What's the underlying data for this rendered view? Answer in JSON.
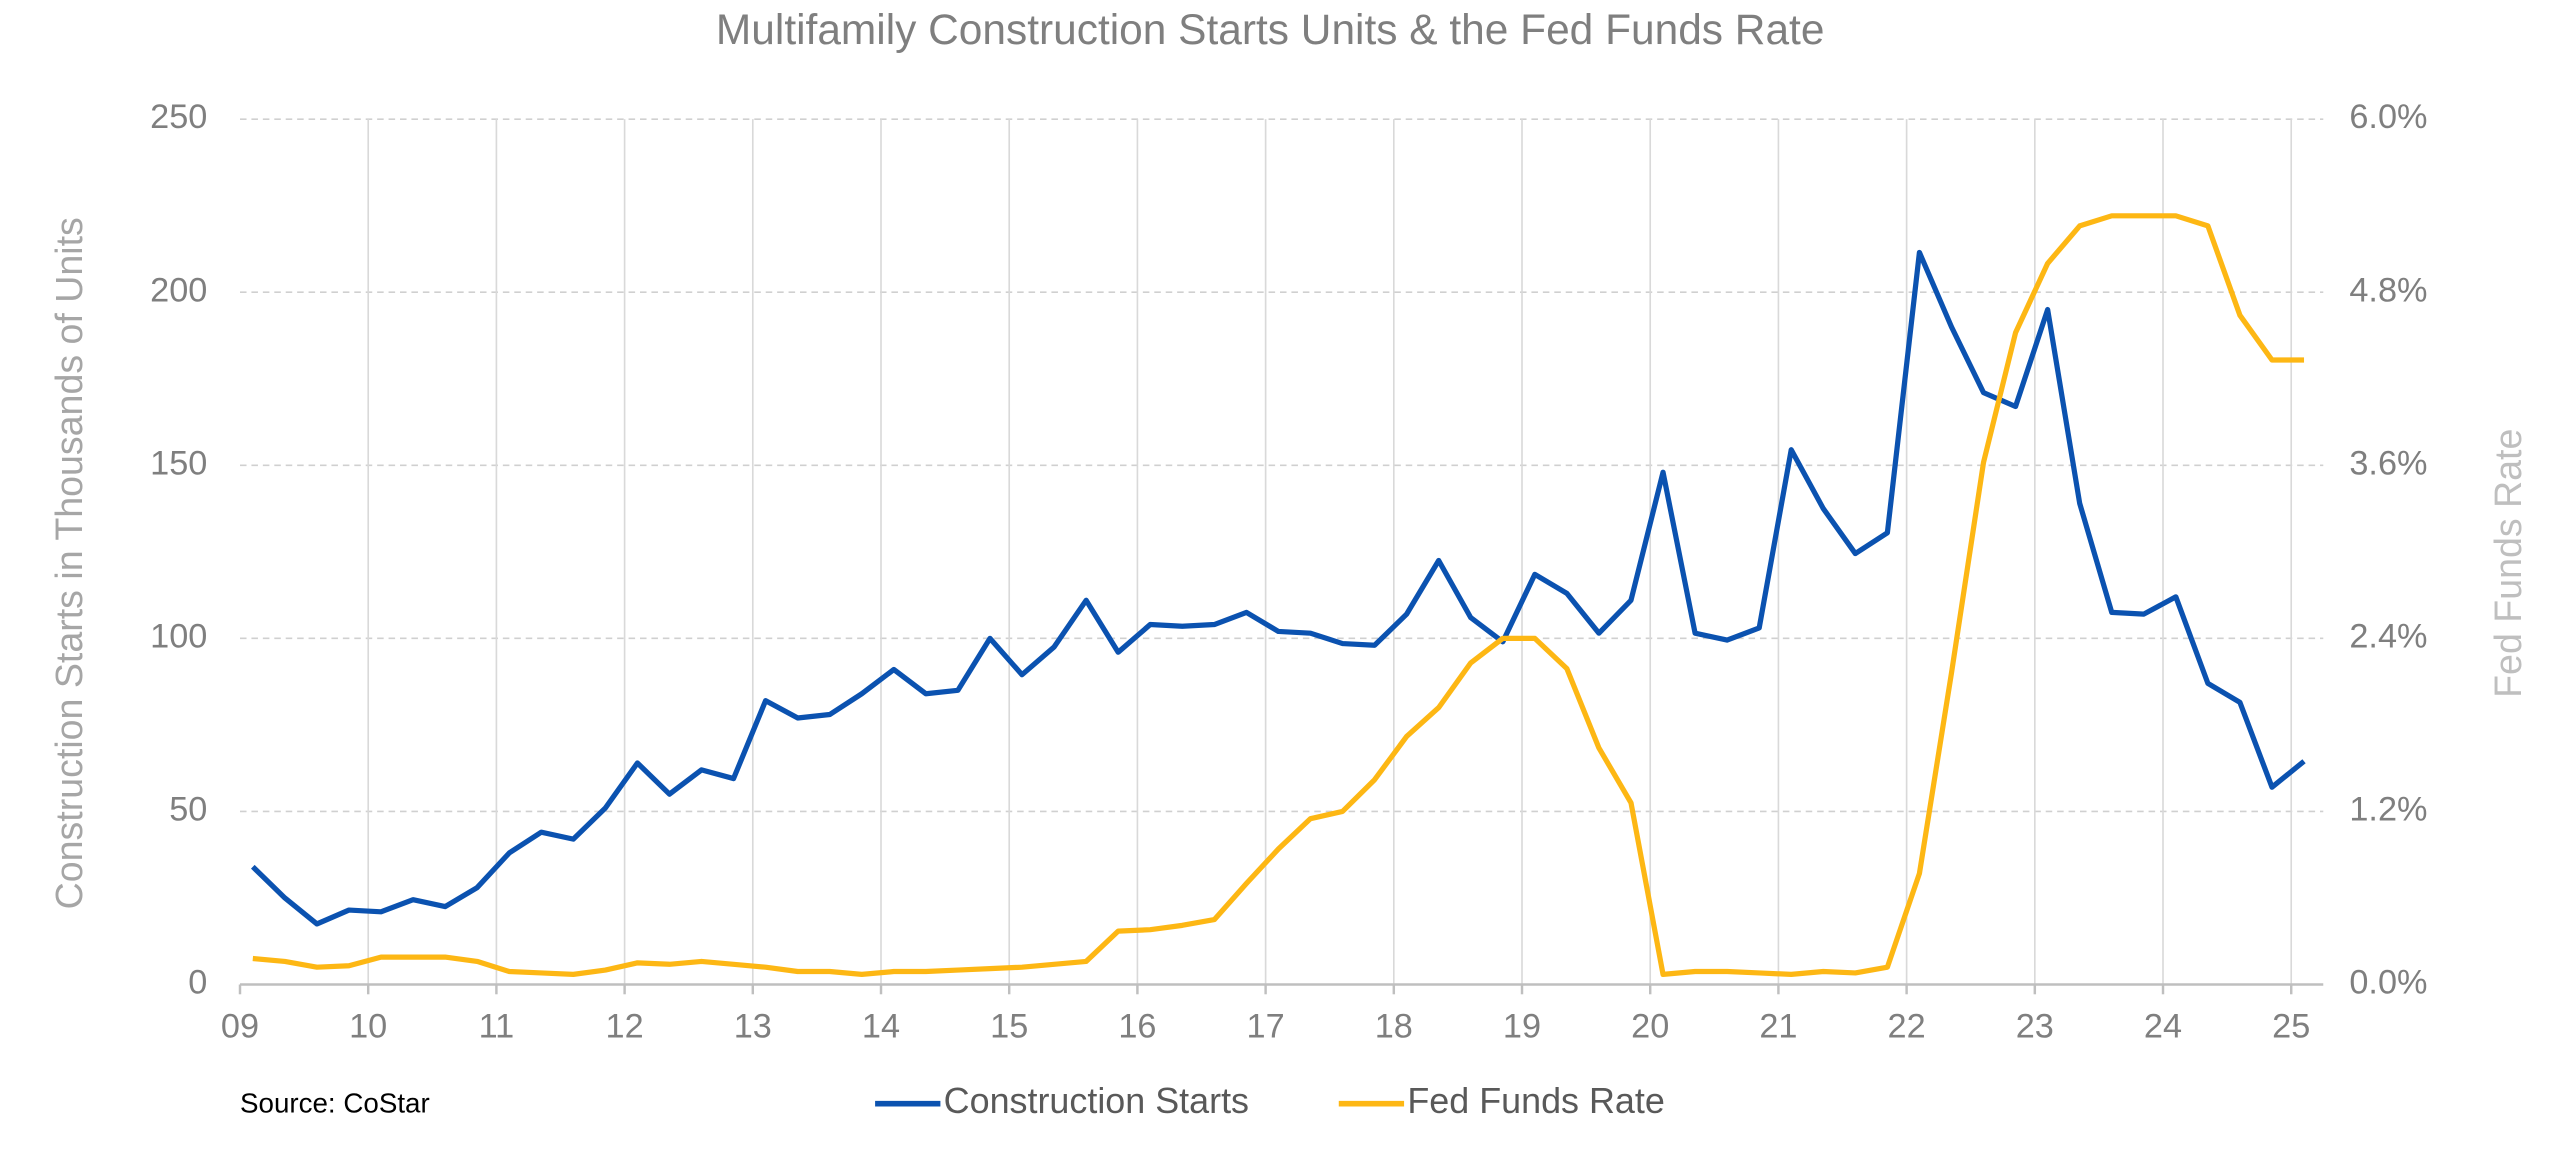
{
  "chart_data": {
    "type": "line",
    "title": "Multifamily Construction Starts Units & the Fed Funds Rate",
    "y_label": "Construction Starts in Thousands of Units",
    "y2_label": "Fed Funds Rate",
    "source": "Source: CoStar",
    "x": [
      2009.1,
      2009.35,
      2009.6,
      2009.85,
      2010.1,
      2010.35,
      2010.6,
      2010.85,
      2011.1,
      2011.35,
      2011.6,
      2011.85,
      2012.1,
      2012.35,
      2012.6,
      2012.85,
      2013.1,
      2013.35,
      2013.6,
      2013.85,
      2014.1,
      2014.35,
      2014.6,
      2014.85,
      2015.1,
      2015.35,
      2015.6,
      2015.85,
      2016.1,
      2016.35,
      2016.6,
      2016.85,
      2017.1,
      2017.35,
      2017.6,
      2017.85,
      2018.1,
      2018.35,
      2018.6,
      2018.85,
      2019.1,
      2019.35,
      2019.6,
      2019.85,
      2020.1,
      2020.35,
      2020.6,
      2020.85,
      2021.1,
      2021.35,
      2021.6,
      2021.85,
      2022.1,
      2022.35,
      2022.6,
      2022.85,
      2023.1,
      2023.35,
      2023.6,
      2023.85,
      2024.1,
      2024.35,
      2024.6,
      2024.85,
      2025.1
    ],
    "series": [
      {
        "name": "Construction Starts",
        "color": "#0b52b0",
        "axis": "y",
        "values": [
          34,
          25,
          17.5,
          21.5,
          21,
          24.5,
          22.5,
          28,
          38,
          44,
          42,
          51,
          64,
          55,
          62,
          59.5,
          82,
          77,
          78,
          84,
          91,
          84,
          85,
          100,
          89.5,
          97.5,
          111,
          96,
          104,
          103.5,
          104,
          107.5,
          102,
          101.5,
          98.5,
          98,
          107,
          122.5,
          106,
          99,
          118.5,
          113,
          101.5,
          111,
          148,
          101.5,
          99.5,
          103,
          154.5,
          137.5,
          124.5,
          130.5,
          211.5,
          190,
          171,
          167,
          195,
          139,
          107.5,
          107,
          112,
          87,
          81.5,
          57,
          64.5
        ]
      },
      {
        "name": "Fed Funds Rate",
        "color": "#fdb714",
        "axis": "y2",
        "values": [
          0.18,
          0.16,
          0.12,
          0.13,
          0.19,
          0.19,
          0.19,
          0.16,
          0.09,
          0.08,
          0.07,
          0.1,
          0.15,
          0.14,
          0.16,
          0.14,
          0.12,
          0.09,
          0.09,
          0.07,
          0.09,
          0.09,
          0.1,
          0.11,
          0.12,
          0.14,
          0.16,
          0.37,
          0.38,
          0.41,
          0.45,
          0.7,
          0.94,
          1.15,
          1.2,
          1.42,
          1.72,
          1.92,
          2.23,
          2.4,
          2.4,
          2.19,
          1.64,
          1.26,
          0.07,
          0.09,
          0.09,
          0.08,
          0.07,
          0.09,
          0.08,
          0.12,
          0.77,
          2.16,
          3.62,
          4.52,
          5.0,
          5.26,
          5.33,
          5.33,
          5.33,
          5.26,
          4.64,
          4.33,
          4.33
        ]
      }
    ],
    "xlim": [
      2009,
      2025.25
    ],
    "xticks": [
      {
        "value": 2009,
        "label": "09"
      },
      {
        "value": 2010,
        "label": "10"
      },
      {
        "value": 2011,
        "label": "11"
      },
      {
        "value": 2012,
        "label": "12"
      },
      {
        "value": 2013,
        "label": "13"
      },
      {
        "value": 2014,
        "label": "14"
      },
      {
        "value": 2015,
        "label": "15"
      },
      {
        "value": 2016,
        "label": "16"
      },
      {
        "value": 2017,
        "label": "17"
      },
      {
        "value": 2018,
        "label": "18"
      },
      {
        "value": 2019,
        "label": "19"
      },
      {
        "value": 2020,
        "label": "20"
      },
      {
        "value": 2021,
        "label": "21"
      },
      {
        "value": 2022,
        "label": "22"
      },
      {
        "value": 2023,
        "label": "23"
      },
      {
        "value": 2024,
        "label": "24"
      },
      {
        "value": 2025,
        "label": "25"
      }
    ],
    "ylim": [
      0,
      250
    ],
    "yticks": [
      0,
      50,
      100,
      150,
      200,
      250
    ],
    "y2lim": [
      0,
      6
    ],
    "y2ticks": [
      {
        "value": 0,
        "label": "0.0%"
      },
      {
        "value": 1.2,
        "label": "1.2%"
      },
      {
        "value": 2.4,
        "label": "2.4%"
      },
      {
        "value": 3.6,
        "label": "3.6%"
      },
      {
        "value": 4.8,
        "label": "4.8%"
      },
      {
        "value": 6,
        "label": "6.0%"
      }
    ],
    "grid": true,
    "legend": "bottom"
  }
}
